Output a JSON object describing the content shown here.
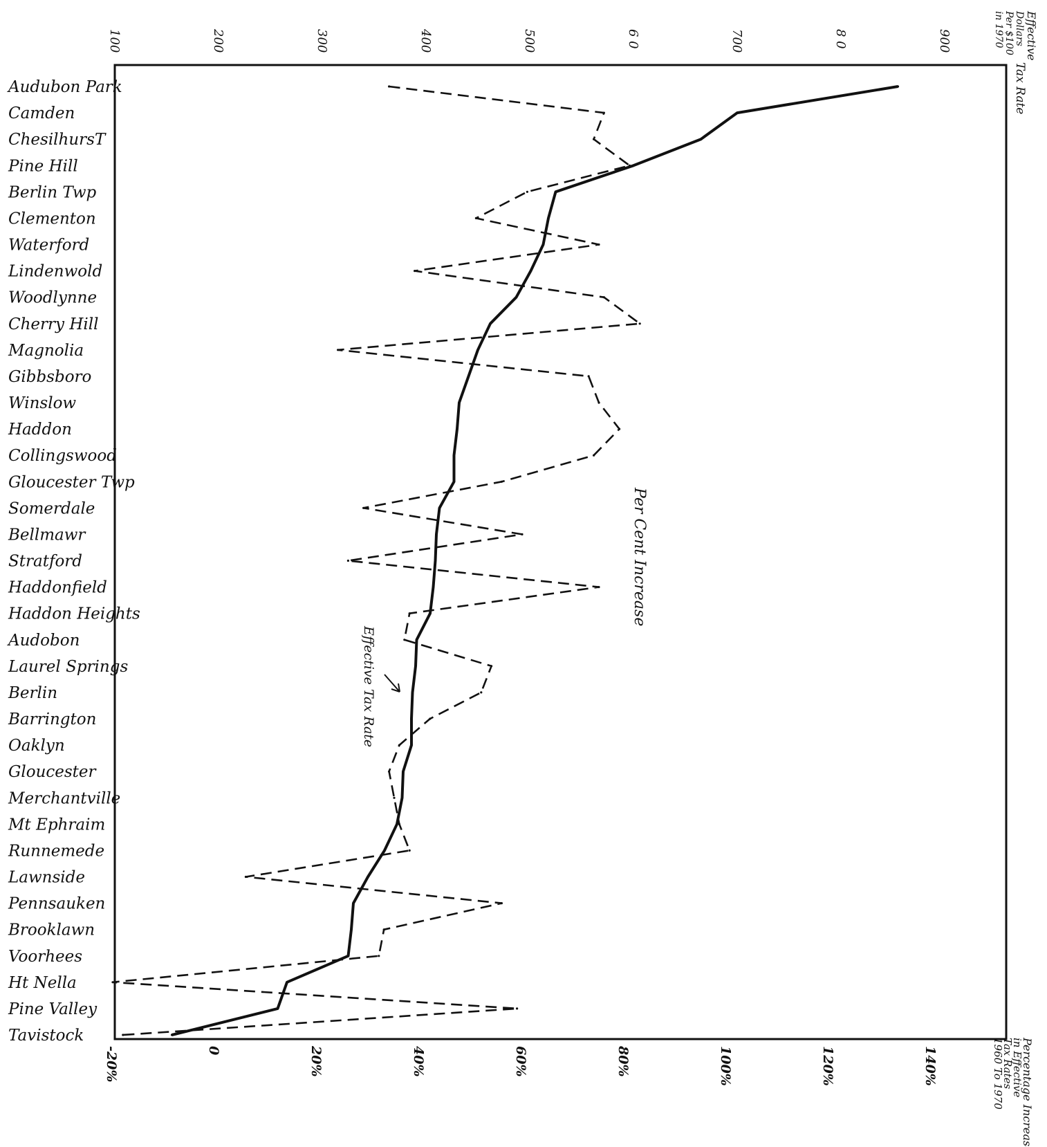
{
  "chart_data": {
    "type": "line",
    "orientation": "horizontal-categories-on-left",
    "categories": [
      "Audubon Park",
      "Camden",
      "ChesilhursT",
      "Pine Hill",
      "Berlin Twp",
      "Clementon",
      "Waterford",
      "Lindenwold",
      "Woodlynne",
      "Cherry Hill",
      "Magnolia",
      "Gibbsboro",
      "Winslow",
      "Haddon",
      "Collingswood",
      "Gloucester Twp",
      "Somerdale",
      "Bellmawr",
      "Stratford",
      "Haddonfield",
      "Haddon Heights",
      "Audobon",
      "Laurel Springs",
      "Berlin",
      "Barrington",
      "Oaklyn",
      "Gloucester",
      "Merchantville",
      "Mt Ephraim",
      "Runnemede",
      "Lawnside",
      "Pennsauken",
      "Brooklawn",
      "Voorhees",
      "Ht Nella",
      "Pine Valley",
      "Tavistock"
    ],
    "top_axis": {
      "ticks": [
        "100",
        "200",
        "300",
        "400",
        "500",
        "6 0",
        "700",
        "8 0",
        "900"
      ],
      "tick_values": [
        100,
        200,
        300,
        400,
        500,
        600,
        700,
        800,
        900
      ],
      "range": [
        100,
        950
      ],
      "title_lines": [
        "Effective",
        "Dollars",
        "Per $100",
        "in 1970"
      ],
      "title_side": "Tax Rate"
    },
    "bottom_axis": {
      "ticks": [
        "-20%",
        "0",
        "20%",
        "40%",
        "60%",
        "80%",
        "100%",
        "120%",
        "140%"
      ],
      "tick_values": [
        -20,
        0,
        20,
        40,
        60,
        80,
        100,
        120,
        140
      ],
      "range": [
        -20,
        155
      ],
      "title_lines": [
        "Percentage Increase",
        "in Effective",
        "Tax Rates",
        "1960 To 1970"
      ]
    },
    "series": [
      {
        "key": "effective_tax_rate",
        "style": "solid",
        "axis": "top",
        "values": [
          855,
          700,
          665,
          600,
          525,
          518,
          513,
          501,
          487,
          462,
          450,
          441,
          432,
          430,
          427,
          427,
          413,
          410,
          409,
          407,
          404,
          391,
          390,
          387,
          386,
          386,
          378,
          377,
          372,
          360,
          344,
          330,
          328,
          325,
          266,
          257,
          155
        ]
      },
      {
        "key": "percent_increase",
        "style": "dashed",
        "axis": "bottom",
        "values": [
          34,
          76,
          74,
          81,
          61,
          51,
          75,
          39,
          76,
          83,
          24,
          73,
          75,
          79,
          74,
          56,
          29,
          60,
          26,
          75,
          38,
          37,
          54,
          52,
          42,
          36,
          34,
          35,
          36,
          38,
          6,
          56,
          33,
          32,
          -20,
          59,
          -18
        ]
      }
    ],
    "annotations": [
      {
        "id": "per_cent_increase",
        "text": "Per Cent Increase"
      },
      {
        "id": "effective_tax_rate_label",
        "text": "Effective Tax Rate"
      }
    ],
    "grid": false,
    "legend": "none"
  }
}
